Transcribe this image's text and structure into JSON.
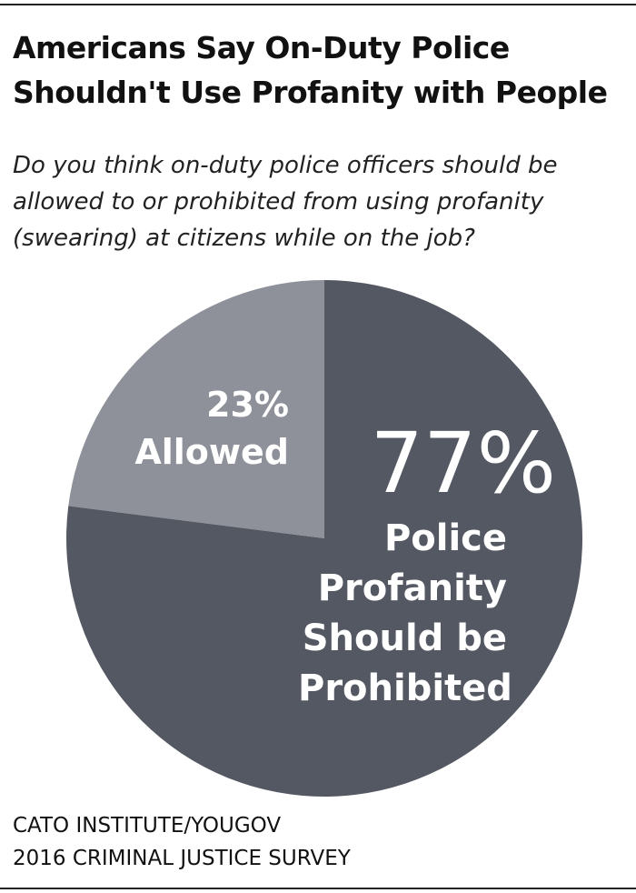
{
  "chart_data": {
    "type": "pie",
    "title": "Americans Say On-Duty Police Shouldn't Use Profanity with People",
    "subtitle": "Do you think on-duty police officers should be allowed to or prohibited from using profanity (swearing) at citizens while on the job?",
    "categories": [
      "Allowed",
      "Police Profanity Should be Prohibited"
    ],
    "values": [
      23,
      77
    ],
    "value_labels": [
      "23%",
      "77%"
    ],
    "colors": [
      "#8e9199",
      "#535862"
    ],
    "source": [
      "CATO INSTITUTE/YOUGOV",
      "2016 CRIMINAL JUSTICE SURVEY"
    ]
  }
}
